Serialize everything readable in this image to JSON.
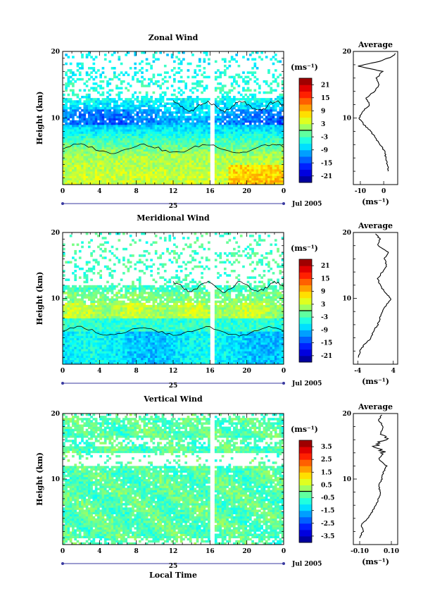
{
  "chart_data": [
    {
      "type": "heatmap",
      "title": "Zonal Wind",
      "ylabel": "Height (km)",
      "y_ticks": [
        "10",
        "20"
      ],
      "x_ticks": [
        "0",
        "4",
        "8",
        "12",
        "16",
        "20",
        "0"
      ],
      "date_label": "25",
      "date_right": "Jul 2005",
      "unit": "(ms⁻¹)",
      "colorbar_ticks": [
        "21",
        "15",
        "9",
        "3",
        "-3",
        "-9",
        "-15",
        "-21"
      ],
      "colorbar_range": [
        -24,
        24
      ],
      "avg": {
        "title": "Average",
        "xlabel": "(ms⁻¹)",
        "x_ticks": [
          "-10",
          "0"
        ],
        "xlim": [
          -13,
          6
        ],
        "profile": [
          [
            2.0,
            2
          ],
          [
            1.5,
            3
          ],
          [
            1.0,
            4
          ],
          [
            0.3,
            5
          ],
          [
            -1.5,
            6
          ],
          [
            -3.5,
            7
          ],
          [
            -5.5,
            8
          ],
          [
            -8.5,
            9
          ],
          [
            -10.5,
            10
          ],
          [
            -9.0,
            11
          ],
          [
            -6.0,
            12
          ],
          [
            -7.5,
            13
          ],
          [
            -4.0,
            14
          ],
          [
            -2.0,
            15
          ],
          [
            -3.0,
            16
          ],
          [
            -0.5,
            17
          ],
          [
            -11.0,
            17.8
          ],
          [
            -2.0,
            18.5
          ],
          [
            3.5,
            19.2
          ],
          [
            5.0,
            19.7
          ]
        ]
      }
    },
    {
      "type": "heatmap",
      "title": "Meridional Wind",
      "ylabel": "Height (km)",
      "y_ticks": [
        "10",
        "20"
      ],
      "x_ticks": [
        "0",
        "4",
        "8",
        "12",
        "16",
        "20",
        "0"
      ],
      "date_label": "25",
      "date_right": "Jul 2005",
      "unit": "(ms⁻¹)",
      "colorbar_ticks": [
        "21",
        "15",
        "9",
        "3",
        "-3",
        "-9",
        "-15",
        "-21"
      ],
      "colorbar_range": [
        -24,
        24
      ],
      "avg": {
        "title": "Average",
        "xlabel": "(ms⁻¹)",
        "x_ticks": [
          "-4",
          "4"
        ],
        "xlim": [
          -5,
          5
        ],
        "profile": [
          [
            -3.8,
            1
          ],
          [
            -3.5,
            2
          ],
          [
            -2.5,
            3
          ],
          [
            -1.0,
            4
          ],
          [
            -0.5,
            5
          ],
          [
            0.5,
            6
          ],
          [
            1.0,
            7
          ],
          [
            1.5,
            8
          ],
          [
            2.5,
            9
          ],
          [
            3.5,
            10
          ],
          [
            2.0,
            11
          ],
          [
            1.0,
            12
          ],
          [
            0.5,
            13
          ],
          [
            1.5,
            14
          ],
          [
            2.5,
            15
          ],
          [
            2.0,
            16
          ],
          [
            3.0,
            17
          ],
          [
            0.5,
            18
          ],
          [
            1.0,
            19
          ],
          [
            0.0,
            19.8
          ]
        ]
      }
    },
    {
      "type": "heatmap",
      "title": "Vertical Wind",
      "ylabel": "Height (km)",
      "y_ticks": [
        "10",
        "20"
      ],
      "x_ticks": [
        "0",
        "4",
        "8",
        "12",
        "16",
        "20",
        "0"
      ],
      "date_label": "25",
      "date_right": "Jul 2005",
      "xlabel": "Local Time",
      "unit": "(ms⁻¹)",
      "colorbar_ticks": [
        "3.5",
        "2.5",
        "1.5",
        "0.5",
        "-0.5",
        "-1.5",
        "-2.5",
        "-3.5"
      ],
      "colorbar_range": [
        -4,
        4
      ],
      "avg": {
        "title": "Average",
        "xlabel": "(ms⁻¹)",
        "x_ticks": [
          "-0.10",
          "0.10"
        ],
        "xlim": [
          -0.14,
          0.14
        ],
        "profile": [
          [
            -0.1,
            1
          ],
          [
            -0.08,
            2
          ],
          [
            -0.09,
            3
          ],
          [
            -0.05,
            4
          ],
          [
            -0.02,
            5
          ],
          [
            0.0,
            6
          ],
          [
            0.02,
            7
          ],
          [
            0.03,
            8
          ],
          [
            0.02,
            9
          ],
          [
            0.04,
            10
          ],
          [
            0.05,
            11
          ],
          [
            0.07,
            12
          ],
          [
            0.02,
            13
          ],
          [
            0.05,
            14
          ],
          [
            -0.01,
            15
          ],
          [
            0.06,
            16
          ],
          [
            0.03,
            17
          ],
          [
            0.05,
            18
          ],
          [
            0.02,
            19
          ],
          [
            0.04,
            19.8
          ]
        ]
      }
    }
  ]
}
